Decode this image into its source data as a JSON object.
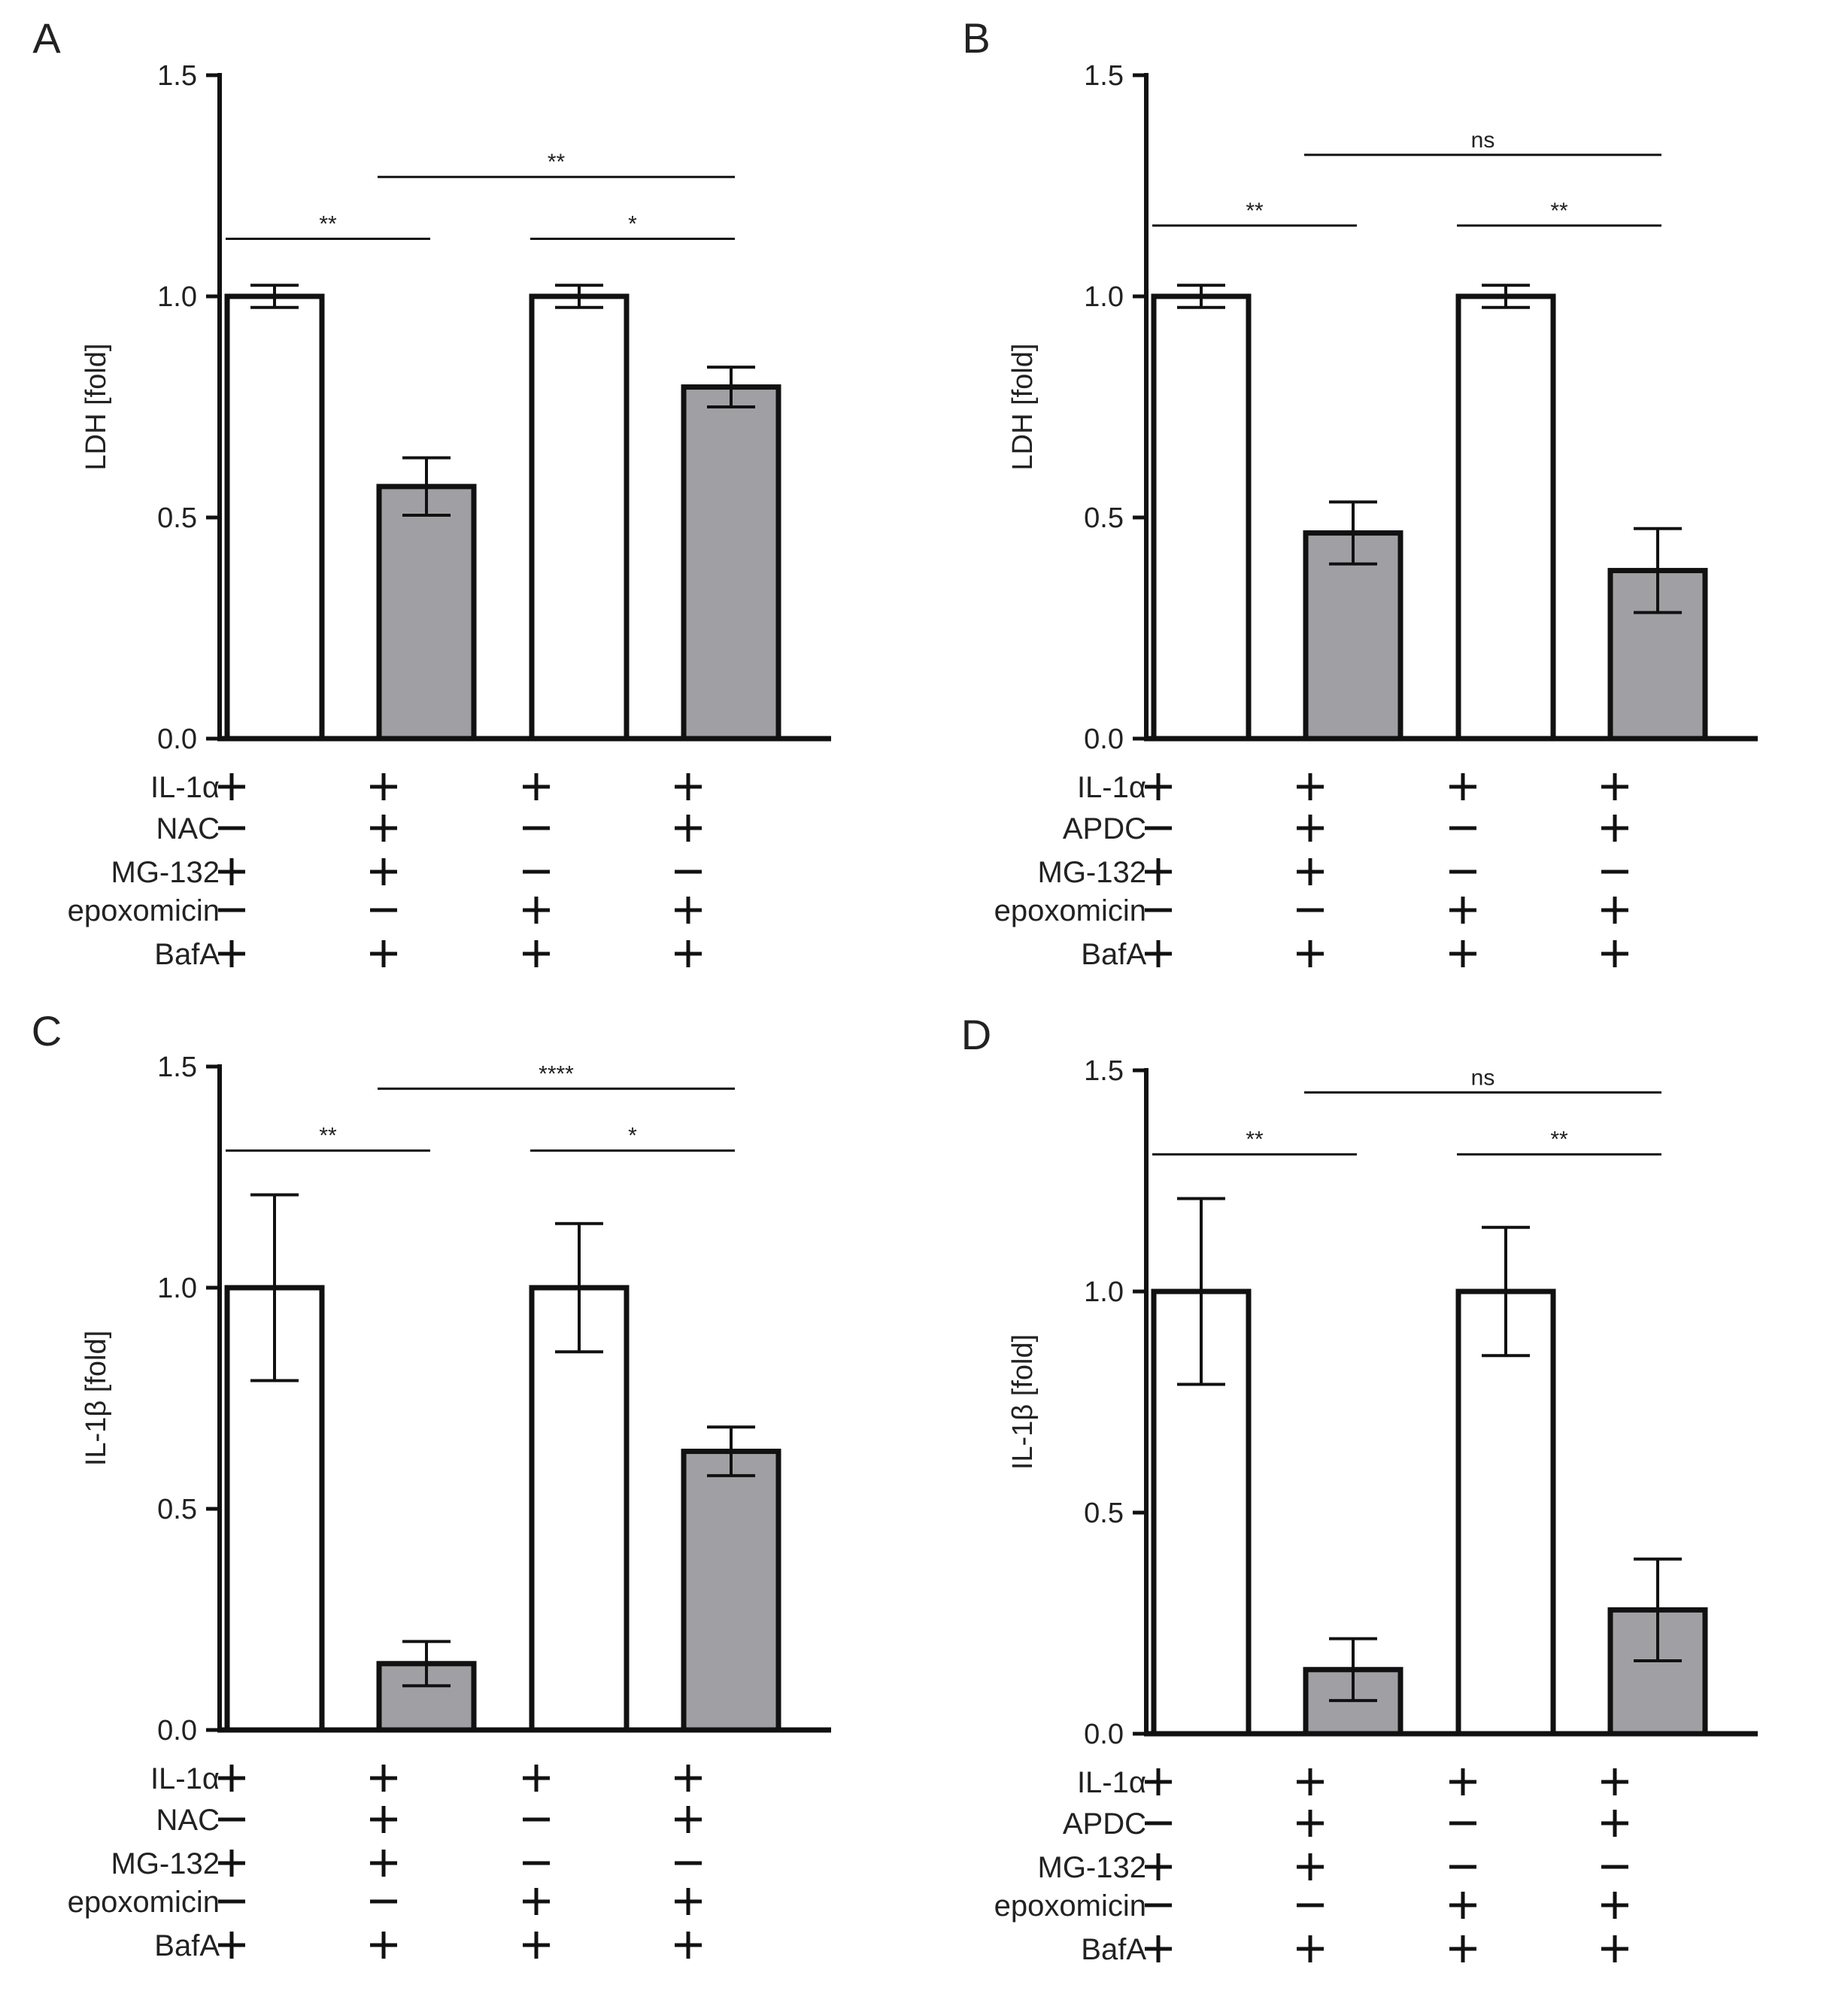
{
  "colors": {
    "white_bar": "#ffffff",
    "gray_bar": "#a0a0a4",
    "stroke": "#111111",
    "text": "#222222"
  },
  "signs": {
    "plus": "+",
    "minus": "—"
  },
  "chart_data": [
    {
      "panel": "A",
      "type": "bar",
      "title": "",
      "xlabel": "",
      "ylabel": "LDH [fold]",
      "ylim": [
        0,
        1.5
      ],
      "yticks": [
        "0.0",
        "0.5",
        "1.0",
        "1.5"
      ],
      "grid": false,
      "values": [
        1.0,
        0.57,
        1.0,
        0.795
      ],
      "errors": [
        0.025,
        0.065,
        0.025,
        0.045
      ],
      "fills": [
        "white",
        "gray",
        "white",
        "gray"
      ],
      "significance": [
        {
          "from": 0,
          "to": 1,
          "label": "**",
          "y": 1.13
        },
        {
          "from": 2,
          "to": 3,
          "label": "*",
          "y": 1.13
        },
        {
          "from": 1,
          "to": 3,
          "label": "**",
          "y": 1.27
        }
      ],
      "treatments": [
        {
          "label": "IL-1α",
          "signs": [
            "+",
            "+",
            "+",
            "+"
          ]
        },
        {
          "label": "NAC",
          "signs": [
            "-",
            "+",
            "-",
            "+"
          ]
        },
        {
          "label": "MG-132",
          "signs": [
            "+",
            "+",
            "-",
            "-"
          ]
        },
        {
          "label": "epoxomicin",
          "signs": [
            "-",
            "-",
            "+",
            "+"
          ]
        },
        {
          "label": "BafA",
          "signs": [
            "+",
            "+",
            "+",
            "+"
          ]
        }
      ]
    },
    {
      "panel": "B",
      "type": "bar",
      "title": "",
      "xlabel": "",
      "ylabel": "LDH [fold]",
      "ylim": [
        0,
        1.5
      ],
      "yticks": [
        "0.0",
        "0.5",
        "1.0",
        "1.5"
      ],
      "grid": false,
      "values": [
        1.0,
        0.465,
        1.0,
        0.38
      ],
      "errors": [
        0.025,
        0.07,
        0.025,
        0.095
      ],
      "fills": [
        "white",
        "gray",
        "white",
        "gray"
      ],
      "significance": [
        {
          "from": 0,
          "to": 1,
          "label": "**",
          "y": 1.16
        },
        {
          "from": 2,
          "to": 3,
          "label": "**",
          "y": 1.16
        },
        {
          "from": 1,
          "to": 3,
          "label": "ns",
          "y": 1.32
        }
      ],
      "treatments": [
        {
          "label": "IL-1α",
          "signs": [
            "+",
            "+",
            "+",
            "+"
          ]
        },
        {
          "label": "APDC",
          "signs": [
            "-",
            "+",
            "-",
            "+"
          ]
        },
        {
          "label": "MG-132",
          "signs": [
            "+",
            "+",
            "-",
            "-"
          ]
        },
        {
          "label": "epoxomicin",
          "signs": [
            "-",
            "-",
            "+",
            "+"
          ]
        },
        {
          "label": "BafA",
          "signs": [
            "+",
            "+",
            "+",
            "+"
          ]
        }
      ]
    },
    {
      "panel": "C",
      "type": "bar",
      "title": "",
      "xlabel": "",
      "ylabel": "IL-1β [fold]",
      "ylim": [
        0,
        1.5
      ],
      "yticks": [
        "0.0",
        "0.5",
        "1.0",
        "1.5"
      ],
      "grid": false,
      "values": [
        1.0,
        0.15,
        1.0,
        0.63
      ],
      "errors": [
        0.21,
        0.05,
        0.145,
        0.055
      ],
      "fills": [
        "white",
        "gray",
        "white",
        "gray"
      ],
      "significance": [
        {
          "from": 0,
          "to": 1,
          "label": "**",
          "y": 1.31
        },
        {
          "from": 2,
          "to": 3,
          "label": "*",
          "y": 1.31
        },
        {
          "from": 1,
          "to": 3,
          "label": "****",
          "y": 1.45
        }
      ],
      "treatments": [
        {
          "label": "IL-1α",
          "signs": [
            "+",
            "+",
            "+",
            "+"
          ]
        },
        {
          "label": "NAC",
          "signs": [
            "-",
            "+",
            "-",
            "+"
          ]
        },
        {
          "label": "MG-132",
          "signs": [
            "+",
            "+",
            "-",
            "-"
          ]
        },
        {
          "label": "epoxomicin",
          "signs": [
            "-",
            "-",
            "+",
            "+"
          ]
        },
        {
          "label": "BafA",
          "signs": [
            "+",
            "+",
            "+",
            "+"
          ]
        }
      ]
    },
    {
      "panel": "D",
      "type": "bar",
      "title": "",
      "xlabel": "",
      "ylabel": "IL-1β [fold]",
      "ylim": [
        0,
        1.5
      ],
      "yticks": [
        "0.0",
        "0.5",
        "1.0",
        "1.5"
      ],
      "grid": false,
      "values": [
        1.0,
        0.145,
        1.0,
        0.28
      ],
      "errors": [
        0.21,
        0.07,
        0.145,
        0.115
      ],
      "fills": [
        "white",
        "gray",
        "white",
        "gray"
      ],
      "significance": [
        {
          "from": 0,
          "to": 1,
          "label": "**",
          "y": 1.31
        },
        {
          "from": 2,
          "to": 3,
          "label": "**",
          "y": 1.31
        },
        {
          "from": 1,
          "to": 3,
          "label": "ns",
          "y": 1.45
        }
      ],
      "treatments": [
        {
          "label": "IL-1α",
          "signs": [
            "+",
            "+",
            "+",
            "+"
          ]
        },
        {
          "label": "APDC",
          "signs": [
            "-",
            "+",
            "-",
            "+"
          ]
        },
        {
          "label": "MG-132",
          "signs": [
            "+",
            "+",
            "-",
            "-"
          ]
        },
        {
          "label": "epoxomicin",
          "signs": [
            "-",
            "-",
            "+",
            "+"
          ]
        },
        {
          "label": "BafA",
          "signs": [
            "+",
            "+",
            "+",
            "+"
          ]
        }
      ]
    }
  ]
}
